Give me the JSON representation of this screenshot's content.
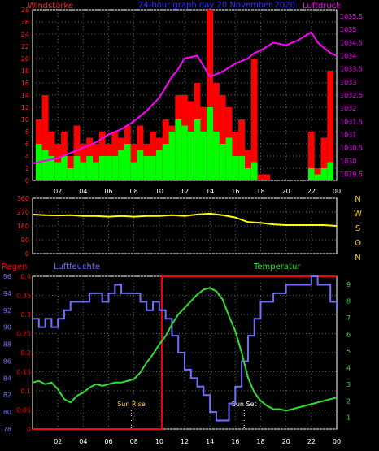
{
  "header": {
    "left_label": "Windstärke",
    "title": "24-hour graph day 20 November 2020",
    "right_label": "Luftdruck"
  },
  "colors": {
    "background": "#000000",
    "grid": "#606060",
    "wind_axis": "#ff2020",
    "pressure": "#ff00ff",
    "title": "#3030ff",
    "wind_gust": "#ff0000",
    "wind_avg": "#00ff00",
    "direction": "#ffff00",
    "direction_letters": "#ffcc00",
    "rain": "#ff0000",
    "humidity": "#7070ff",
    "temperature": "#30dd30",
    "sun_marker": "#ffff66",
    "sun_rise_label": "#ffcc33"
  },
  "x_ticks": [
    "02",
    "04",
    "06",
    "08",
    "10",
    "12",
    "14",
    "16",
    "18",
    "20",
    "22",
    "00"
  ],
  "chart_data": [
    {
      "type": "bar+line",
      "name": "wind-pressure",
      "x_unit": "hour",
      "xlim": [
        0,
        24
      ],
      "left_axis": {
        "label": "Windstärke",
        "ticks": [
          "0",
          "2",
          "4",
          "6",
          "8",
          "10",
          "12",
          "14",
          "16",
          "18",
          "20",
          "22",
          "24",
          "26",
          "28"
        ],
        "ylim": [
          0,
          28
        ]
      },
      "right_axis": {
        "label": "Luftdruck",
        "ticks": [
          "1029.5",
          "1030",
          "1030.5",
          "1031",
          "1031.5",
          "1032",
          "1032.5",
          "1033",
          "1033.5",
          "1034",
          "1034.5",
          "1035",
          "1035.5"
        ],
        "ylim": [
          1029.25,
          1035.75
        ]
      },
      "series": [
        {
          "name": "Windstärke",
          "x": [
            0.5,
            1,
            1.5,
            2,
            2.5,
            3,
            3.5,
            4,
            4.5,
            5,
            5.5,
            6,
            6.5,
            7,
            7.5,
            8,
            8.5,
            9,
            9.5,
            10,
            10.5,
            11,
            11.5,
            12,
            12.5,
            13,
            13.5,
            14,
            14.5,
            15,
            15.5,
            16,
            16.5,
            17,
            17.5,
            18,
            18.5,
            19,
            19.5,
            20,
            20.5,
            21,
            21.5,
            22,
            22.5,
            23,
            23.5
          ],
          "gust": [
            10,
            14,
            8,
            6,
            8,
            4,
            9,
            6,
            7,
            6,
            8,
            6,
            8,
            7,
            9,
            6,
            9,
            6,
            8,
            7,
            10,
            9,
            14,
            14,
            13,
            16,
            12,
            28,
            16,
            14,
            12,
            8,
            10,
            5,
            20,
            1,
            1,
            0,
            0,
            0,
            0,
            0,
            0,
            8,
            2,
            7,
            18
          ],
          "avg": [
            6,
            5,
            4,
            3,
            4,
            2,
            4,
            3,
            4,
            3,
            4,
            4,
            4,
            5,
            6,
            3,
            5,
            4,
            4,
            5,
            6,
            8,
            10,
            9,
            8,
            10,
            8,
            12,
            8,
            6,
            7,
            4,
            4,
            2,
            3,
            0,
            0,
            0,
            0,
            0,
            0,
            0,
            0,
            2,
            1,
            2,
            3
          ]
        },
        {
          "name": "Luftdruck",
          "x": [
            0,
            1,
            2,
            3,
            4,
            5,
            6,
            7,
            8,
            9,
            10,
            11,
            11.5,
            12,
            13,
            13.5,
            14,
            15,
            16,
            17,
            17.5,
            18,
            19,
            20,
            21,
            22,
            22.5,
            23,
            23.5,
            24
          ],
          "y": [
            1029.9,
            1030.0,
            1030.1,
            1030.3,
            1030.5,
            1030.7,
            1031.0,
            1031.2,
            1031.5,
            1031.9,
            1032.4,
            1033.2,
            1033.5,
            1033.9,
            1034.0,
            1033.6,
            1033.2,
            1033.4,
            1033.7,
            1033.9,
            1034.1,
            1034.2,
            1034.5,
            1034.4,
            1034.6,
            1034.9,
            1034.5,
            1034.3,
            1034.1,
            1034.0
          ]
        }
      ]
    },
    {
      "type": "line",
      "name": "wind-direction",
      "xlim": [
        0,
        24
      ],
      "left_axis": {
        "ticks": [
          "0",
          "90",
          "180",
          "270",
          "360"
        ],
        "ylim": [
          0,
          360
        ]
      },
      "direction_letters": [
        "N",
        "W",
        "S",
        "O",
        "N"
      ],
      "series": [
        {
          "name": "Windrichtung",
          "x": [
            0,
            1,
            2,
            3,
            4,
            5,
            6,
            7,
            8,
            9,
            10,
            11,
            12,
            13,
            14,
            15,
            16,
            17,
            18,
            19,
            20,
            21,
            22,
            23,
            24
          ],
          "y": [
            255,
            250,
            248,
            250,
            245,
            245,
            240,
            245,
            240,
            245,
            245,
            250,
            245,
            255,
            260,
            250,
            235,
            205,
            200,
            190,
            185,
            185,
            185,
            185,
            180
          ]
        }
      ]
    },
    {
      "type": "line",
      "name": "rain-humidity-temperature",
      "xlim": [
        0,
        24
      ],
      "labels": {
        "rain": "Regen",
        "humidity": "Luftfeuchte",
        "temperature": "Temperatur",
        "sun_rise": "Sun Rise",
        "sun_set": "Sun Set"
      },
      "rain_axis": {
        "ticks": [
          "0",
          "0.05",
          "0.1",
          "0.15",
          "0.2",
          "0.25",
          "0.3",
          "0.35",
          "0.4"
        ],
        "ylim": [
          0,
          0.4
        ]
      },
      "humidity_axis": {
        "ticks": [
          "78",
          "80",
          "82",
          "84",
          "86",
          "88",
          "90",
          "92",
          "94",
          "96"
        ],
        "ylim": [
          78,
          96
        ]
      },
      "temp_axis": {
        "ticks": [
          "1",
          "2",
          "3",
          "4",
          "5",
          "6",
          "7",
          "8",
          "9"
        ],
        "ylim": [
          0.3,
          9.5
        ]
      },
      "sun_rise": 7.8,
      "sun_set": 16.7,
      "series": [
        {
          "name": "Regen",
          "x": [
            0,
            10.2,
            10.2,
            24
          ],
          "y": [
            0,
            0,
            0.4,
            0.4
          ]
        },
        {
          "name": "Luftfeuchte",
          "x": [
            0,
            0.5,
            1,
            1.5,
            2,
            2.5,
            3,
            3.5,
            4,
            4.5,
            5,
            5.5,
            6,
            6.5,
            7,
            7.5,
            8,
            8.5,
            9,
            9.5,
            10,
            10.5,
            11,
            11.5,
            12,
            12.5,
            13,
            13.5,
            14,
            14.5,
            15,
            15.5,
            16,
            16.5,
            17,
            17.5,
            18,
            18.5,
            19,
            19.5,
            20,
            20.5,
            21,
            21.5,
            22,
            22.5,
            23,
            23.5,
            24
          ],
          "y": [
            91,
            90,
            91,
            90,
            91,
            92,
            93,
            93,
            93,
            94,
            94,
            93,
            94,
            95,
            94,
            94,
            94,
            93,
            92,
            93,
            92,
            91,
            89,
            87,
            85,
            84,
            83,
            82,
            80,
            79,
            79,
            81,
            83,
            86,
            89,
            91,
            93,
            93,
            94,
            94,
            95,
            95,
            95,
            95,
            96,
            95,
            95,
            93,
            92
          ]
        },
        {
          "name": "Temperatur",
          "x": [
            0,
            0.5,
            1,
            1.5,
            2,
            2.5,
            3,
            3.5,
            4,
            4.5,
            5,
            5.5,
            6,
            6.5,
            7,
            7.5,
            8,
            8.5,
            9,
            9.5,
            10,
            10.5,
            11,
            11.5,
            12,
            12.5,
            13,
            13.5,
            14,
            14.5,
            15,
            15.5,
            16,
            16.5,
            17,
            17.5,
            18,
            18.5,
            19,
            19.5,
            20,
            20.5,
            21,
            21.5,
            22,
            22.5,
            23,
            23.5,
            24
          ],
          "y": [
            3.1,
            3.2,
            3.0,
            3.1,
            2.7,
            2.1,
            1.9,
            2.3,
            2.5,
            2.8,
            3.0,
            2.9,
            3.0,
            3.1,
            3.1,
            3.2,
            3.3,
            3.7,
            4.3,
            4.8,
            5.4,
            5.9,
            6.6,
            7.2,
            7.6,
            8.0,
            8.4,
            8.7,
            8.8,
            8.6,
            8.1,
            7.1,
            6.2,
            4.9,
            3.4,
            2.5,
            2.0,
            1.7,
            1.5,
            1.5,
            1.4,
            1.5,
            1.6,
            1.7,
            1.8,
            1.9,
            2.0,
            2.1,
            2.2
          ]
        }
      ]
    }
  ]
}
